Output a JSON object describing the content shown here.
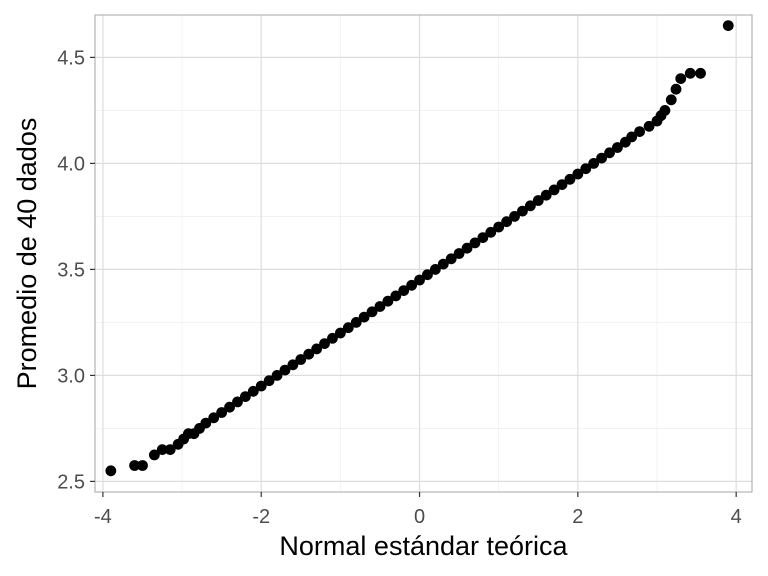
{
  "chart_data": {
    "type": "scatter",
    "subtype": "qq-plot",
    "xlabel": "Normal estándar teórica",
    "ylabel": "Promedio de 40 dados",
    "xlim": [
      -4.1,
      4.2
    ],
    "ylim": [
      2.45,
      4.7
    ],
    "x_ticks": [
      -4,
      -2,
      0,
      2,
      4
    ],
    "x_tick_labels": [
      "-4",
      "-2",
      "0",
      "2",
      "4"
    ],
    "y_ticks": [
      2.5,
      3.0,
      3.5,
      4.0,
      4.5
    ],
    "y_tick_labels": [
      "2.5",
      "3.0",
      "3.5",
      "4.0",
      "4.5"
    ],
    "grid": true,
    "theme": "light",
    "legend": "none",
    "point_color": "#000000",
    "series": [
      {
        "points": [
          [
            -3.9,
            2.55
          ],
          [
            -3.6,
            2.575
          ],
          [
            -3.5,
            2.575
          ],
          [
            -3.35,
            2.625
          ],
          [
            -3.25,
            2.65
          ],
          [
            -3.15,
            2.65
          ],
          [
            -3.05,
            2.675
          ],
          [
            -2.98,
            2.7
          ],
          [
            -2.92,
            2.725
          ],
          [
            -2.85,
            2.725
          ],
          [
            -2.78,
            2.75
          ],
          [
            -2.7,
            2.775
          ],
          [
            -2.6,
            2.8
          ],
          [
            -2.5,
            2.825
          ],
          [
            -2.4,
            2.85
          ],
          [
            -2.3,
            2.875
          ],
          [
            -2.2,
            2.9
          ],
          [
            -2.1,
            2.925
          ],
          [
            -2.0,
            2.95
          ],
          [
            -1.9,
            2.975
          ],
          [
            -1.8,
            3.0
          ],
          [
            -1.7,
            3.025
          ],
          [
            -1.6,
            3.05
          ],
          [
            -1.5,
            3.075
          ],
          [
            -1.4,
            3.1
          ],
          [
            -1.3,
            3.125
          ],
          [
            -1.2,
            3.15
          ],
          [
            -1.1,
            3.175
          ],
          [
            -1.0,
            3.2
          ],
          [
            -0.9,
            3.225
          ],
          [
            -0.8,
            3.25
          ],
          [
            -0.7,
            3.275
          ],
          [
            -0.6,
            3.3
          ],
          [
            -0.5,
            3.325
          ],
          [
            -0.4,
            3.35
          ],
          [
            -0.3,
            3.375
          ],
          [
            -0.2,
            3.4
          ],
          [
            -0.1,
            3.425
          ],
          [
            0.0,
            3.45
          ],
          [
            0.1,
            3.475
          ],
          [
            0.2,
            3.5
          ],
          [
            0.3,
            3.525
          ],
          [
            0.4,
            3.55
          ],
          [
            0.5,
            3.575
          ],
          [
            0.6,
            3.6
          ],
          [
            0.7,
            3.625
          ],
          [
            0.8,
            3.65
          ],
          [
            0.9,
            3.675
          ],
          [
            1.0,
            3.7
          ],
          [
            1.1,
            3.725
          ],
          [
            1.2,
            3.75
          ],
          [
            1.3,
            3.775
          ],
          [
            1.4,
            3.8
          ],
          [
            1.5,
            3.825
          ],
          [
            1.6,
            3.85
          ],
          [
            1.7,
            3.875
          ],
          [
            1.8,
            3.9
          ],
          [
            1.9,
            3.925
          ],
          [
            2.0,
            3.95
          ],
          [
            2.1,
            3.975
          ],
          [
            2.2,
            4.0
          ],
          [
            2.3,
            4.025
          ],
          [
            2.4,
            4.05
          ],
          [
            2.5,
            4.075
          ],
          [
            2.6,
            4.1
          ],
          [
            2.68,
            4.125
          ],
          [
            2.78,
            4.15
          ],
          [
            2.9,
            4.175
          ],
          [
            3.0,
            4.2
          ],
          [
            3.05,
            4.225
          ],
          [
            3.1,
            4.25
          ],
          [
            3.18,
            4.3
          ],
          [
            3.24,
            4.35
          ],
          [
            3.3,
            4.4
          ],
          [
            3.42,
            4.425
          ],
          [
            3.55,
            4.425
          ],
          [
            3.9,
            4.65
          ]
        ]
      }
    ]
  }
}
